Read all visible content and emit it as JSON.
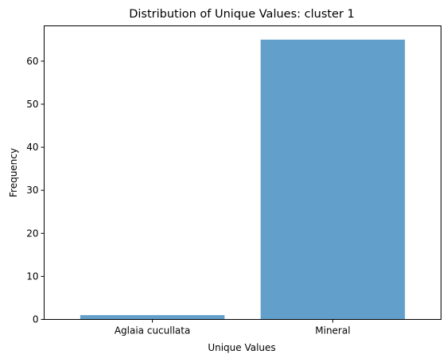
{
  "chart_data": {
    "type": "bar",
    "title": "Distribution of Unique Values: cluster 1",
    "xlabel": "Unique Values",
    "ylabel": "Frequency",
    "categories": [
      "Aglaia cucullata",
      "Mineral"
    ],
    "values": [
      1,
      65
    ],
    "ylim": [
      0,
      68.2
    ],
    "yticks": [
      0,
      10,
      20,
      30,
      40,
      50,
      60
    ],
    "grid": false,
    "bar_color": "#62a0cb"
  }
}
